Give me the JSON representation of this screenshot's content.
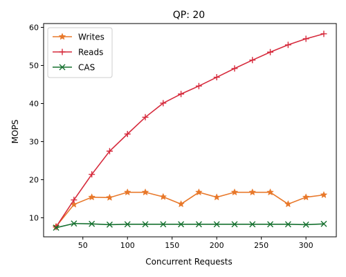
{
  "chart_data": {
    "type": "line",
    "title": "QP: 20",
    "xlabel": "Concurrent Requests",
    "ylabel": "MOPS",
    "xlim": [
      6,
      334
    ],
    "ylim": [
      5,
      61
    ],
    "x_ticks": [
      50,
      100,
      150,
      200,
      250,
      300
    ],
    "y_ticks": [
      10,
      20,
      30,
      40,
      50,
      60
    ],
    "grid": false,
    "legend_position": "top-left",
    "x": [
      20,
      40,
      60,
      80,
      100,
      120,
      140,
      160,
      180,
      200,
      220,
      240,
      260,
      280,
      300,
      320
    ],
    "series": [
      {
        "name": "Writes",
        "color": "#e8782a",
        "marker": "star",
        "values": [
          7.7,
          13.5,
          15.4,
          15.3,
          16.7,
          16.7,
          15.5,
          13.6,
          16.7,
          15.4,
          16.7,
          16.7,
          16.7,
          13.6,
          15.4,
          16.0
        ]
      },
      {
        "name": "Reads",
        "color": "#d62a3c",
        "marker": "plus",
        "values": [
          7.6,
          14.7,
          21.4,
          27.5,
          32.0,
          36.4,
          40.1,
          42.5,
          44.6,
          46.9,
          49.2,
          51.4,
          53.5,
          55.4,
          57.0,
          58.3
        ]
      },
      {
        "name": "CAS",
        "color": "#15702f",
        "marker": "x",
        "values": [
          7.4,
          8.5,
          8.4,
          8.2,
          8.3,
          8.3,
          8.3,
          8.3,
          8.3,
          8.3,
          8.3,
          8.3,
          8.3,
          8.3,
          8.2,
          8.4
        ]
      }
    ]
  }
}
